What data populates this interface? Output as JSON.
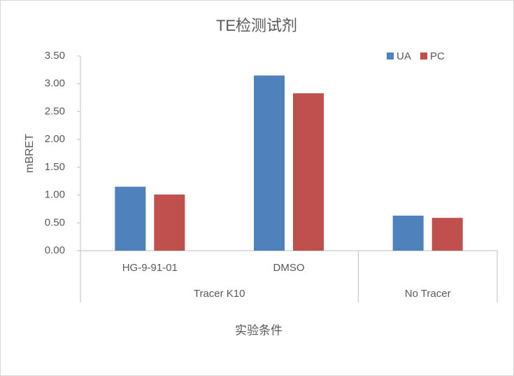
{
  "chart_data": {
    "type": "bar",
    "title": "TE检测试剂",
    "x_label": "实验条件",
    "y_label": "mBRET",
    "groups": [
      {
        "name": "Tracer K10",
        "categories": [
          "HG-9-91-01",
          "DMSO"
        ]
      },
      {
        "name": "No Tracer",
        "categories": [
          null
        ]
      }
    ],
    "series": [
      {
        "name": "UA",
        "color": "#4f81bd",
        "values": [
          1.15,
          3.15,
          0.63
        ]
      },
      {
        "name": "PC",
        "color": "#c0504d",
        "values": [
          1.01,
          2.83,
          0.59
        ]
      }
    ],
    "ylim": [
      0,
      3.5
    ],
    "yticks": [
      {
        "value": 0,
        "label": "0.00"
      },
      {
        "value": 0.5,
        "label": "0.50"
      },
      {
        "value": 1,
        "label": "1.00"
      },
      {
        "value": 1.5,
        "label": "1.50"
      },
      {
        "value": 2,
        "label": "2.00"
      },
      {
        "value": 2.5,
        "label": "2.50"
      },
      {
        "value": 3,
        "label": "3.00"
      },
      {
        "value": 3.5,
        "label": "3.50"
      }
    ],
    "legend": "top-right"
  }
}
